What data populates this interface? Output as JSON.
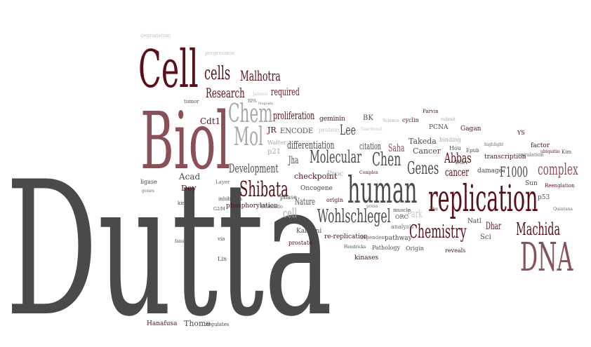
{
  "cloud": {
    "large": {
      "dutta": "Dutta",
      "biol": "Biol",
      "cell": "Cell",
      "human": "human",
      "replication": "replication",
      "dna": "DNA",
      "chem": "Chem",
      "mol": "Mol"
    },
    "medium": {
      "cells": "cells",
      "malhotra": "Malhotra",
      "research": "Research",
      "required": "required",
      "shibata": "Shibata",
      "wohlschlegel": "Wohlschlegel",
      "chemistry": "Chemistry",
      "machida": "Machida",
      "molecular": "Molecular",
      "chen": "Chen",
      "genes": "Genes",
      "development": "Development",
      "complex": "complex",
      "f1000": "F1000",
      "abbas": "Abbas",
      "proliferation": "proliferation",
      "differentiation": "differentiation",
      "lee": "Lee",
      "nature": "Nature",
      "cancer": "cancer",
      "saha": "Saha",
      "citation": "citation",
      "cell_gray": "cell",
      "park": "Park",
      "dhar": "Dhar",
      "jha": "Jha"
    },
    "small": {
      "degradation": "degradation",
      "progression": "progression",
      "jazaeri": "Jazaeri",
      "rpa": "RPA",
      "nogoshi": "Nogoshi",
      "tumor": "tumor",
      "cdt1": "Cdt1",
      "geminin": "geminin",
      "encode": "ENCODE",
      "protein": "protein",
      "bk": "BK",
      "functional": "functional",
      "science": "Science",
      "cyclin": "cyclin",
      "parvin": "Parvin",
      "submit": "submit",
      "pcna": "PCNA",
      "gagan": "Gagan",
      "takeda": "Takeda",
      "cancer_cap": "Cancer",
      "binding": "binding",
      "hou": "Hou",
      "epub": "Epub",
      "factor": "factor",
      "ys": "YS",
      "ubiquitin": "ubiquitin",
      "kim": "Kim",
      "transcription": "transcription",
      "regulation": "regulation",
      "jr": "JR",
      "walter": "Walter",
      "p21": "p21",
      "acad": "Acad",
      "dey": "Dey",
      "ligase": "ligase",
      "genes_lc": "genes",
      "kinase": "kinase",
      "layer": "Layer",
      "inhibition": "inhibition",
      "phosphorylation": "phosphorylation",
      "checkpoint": "checkpoint",
      "proc": "Proc",
      "oncogene": "Oncogene",
      "phase": "phase",
      "origin": "origin",
      "ulomado": "Ulomado",
      "muscle": "muscle",
      "orc": "ORC",
      "analysis": "analysis",
      "natl": "Natl",
      "sci": "Sci",
      "usa": "USA",
      "damage": "damage",
      "sun": "Sun",
      "p53": "p53",
      "reenglantion": "Reenglation",
      "karnani": "Karnani",
      "prostate": "prostate",
      "rereplication": "re-replication",
      "pathway": "pathway",
      "dependent": "dependent",
      "kinases": "kinases",
      "pathology": "Pathology",
      "origin2": "Origin",
      "reveals": "reveals",
      "hendricks": "Hendricks",
      "lin": "Lin",
      "via": "via",
      "hanafusa": "Hanafusa",
      "thome": "Thome",
      "regulates": "regulates",
      "family": "family",
      "highlight": "highlight",
      "zhu": "Zhu",
      "ssk": "SSK",
      "quintana": "Quintana",
      "complex_cap": "Complex",
      "press": "press",
      "g2m": "G2/M"
    }
  }
}
